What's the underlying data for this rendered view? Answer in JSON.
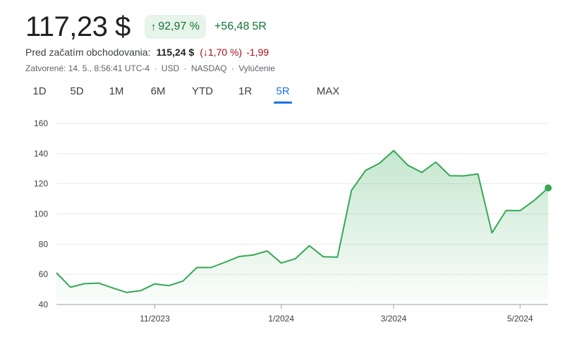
{
  "header": {
    "price": "117,23 $",
    "change_badge": {
      "arrow": "↑",
      "percent": "92,97 %",
      "color": "#137333",
      "bg": "#e6f4ea"
    },
    "change_abs": "+56,48",
    "period_label": "5R"
  },
  "premarket": {
    "label": "Pred začatím obchodovania:",
    "price": "115,24 $",
    "percent": "(↓1,70 %)",
    "abs": "-1,99",
    "color": "#a50e0e"
  },
  "meta": {
    "closed": "Zatvorené: 14. 5., 8:56:41 UTC-4",
    "currency": "USD",
    "exchange": "NASDAQ",
    "disclaimer": "Vylúčenie",
    "separator": "·"
  },
  "tabs": [
    {
      "label": "1D",
      "active": false
    },
    {
      "label": "5D",
      "active": false
    },
    {
      "label": "1M",
      "active": false
    },
    {
      "label": "6M",
      "active": false
    },
    {
      "label": "YTD",
      "active": false
    },
    {
      "label": "1R",
      "active": false
    },
    {
      "label": "5R",
      "active": true
    },
    {
      "label": "MAX",
      "active": false
    }
  ],
  "chart_data": {
    "type": "area",
    "line_color": "#34a853",
    "fill_color": "#34a853",
    "grid": true,
    "ylim": [
      40,
      160
    ],
    "yticks": [
      40,
      60,
      80,
      100,
      120,
      140,
      160
    ],
    "xlim": [
      0,
      35
    ],
    "xticks": [
      {
        "x": 7,
        "label": "11/2023"
      },
      {
        "x": 16,
        "label": "1/2024"
      },
      {
        "x": 24,
        "label": "3/2024"
      },
      {
        "x": 33,
        "label": "5/2024"
      }
    ],
    "series": [
      {
        "x": [
          0,
          1,
          2,
          3,
          4,
          5,
          6,
          7,
          8,
          9,
          10,
          11,
          12,
          13,
          14,
          15,
          16,
          17,
          18,
          19,
          20,
          21,
          22,
          23,
          24,
          25,
          26,
          27,
          28,
          29,
          30,
          31,
          32,
          33,
          34,
          35
        ],
        "values": [
          61,
          51.5,
          53.8,
          54.2,
          51,
          48,
          49.2,
          53.7,
          52.5,
          55.5,
          64.5,
          64.5,
          68,
          71.8,
          72.8,
          75.5,
          67.5,
          70.3,
          79,
          71.6,
          71.4,
          115.6,
          128.8,
          133.6,
          142,
          132.3,
          127.5,
          134.3,
          125.3,
          125.2,
          126.5,
          87.5,
          102.3,
          102.2,
          108.9,
          117.23
        ]
      }
    ]
  }
}
